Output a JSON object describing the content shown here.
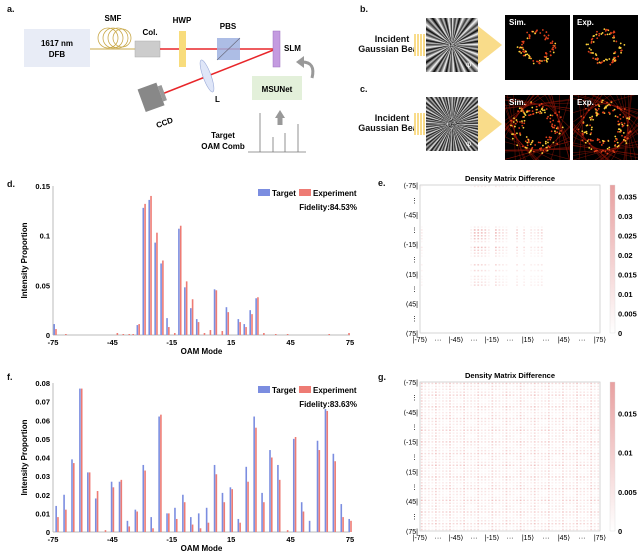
{
  "panel_labels": {
    "a": "a.",
    "b": "b.",
    "c": "c.",
    "d": "d.",
    "e": "e.",
    "f": "f.",
    "g": "g."
  },
  "setup": {
    "laser": [
      "1617 nm",
      "DFB"
    ],
    "smf": "SMF",
    "col": "Col.",
    "hwp": "HWP",
    "pbs": "PBS",
    "slm": "SLM",
    "lens": "L",
    "ccd": "CCD",
    "network": "MSUNet",
    "target": [
      "Target",
      "OAM Comb"
    ],
    "colors": {
      "laser_box": "#e8ecf6",
      "beam": "#e8262a",
      "hwp": "#f8dc7c",
      "pbs": "#9fb2e0",
      "slm": "#c49be0",
      "network_box": "#e3f0da",
      "arrow": "#999999"
    }
  },
  "beam_panels": [
    {
      "incident": [
        "Incident",
        "Gaussian Beam"
      ],
      "phase_symbol": "φ",
      "sim": "Sim.",
      "exp": "Exp."
    },
    {
      "incident": [
        "Incident",
        "Gaussian Beam"
      ],
      "phase_symbol": "φ",
      "sim": "Sim.",
      "exp": "Exp."
    }
  ],
  "chart_data": [
    {
      "type": "bar",
      "panel": "d",
      "xlabel": "OAM Mode",
      "ylabel": "Intensity Proportion",
      "xlim": [
        -75,
        75
      ],
      "ylim": [
        0,
        0.15
      ],
      "xticks": [
        "-75",
        "-45",
        "-15",
        "15",
        "45",
        "75"
      ],
      "yticks": [
        "0",
        "0.05",
        "0.1",
        "0.15"
      ],
      "legend": [
        "Target",
        "Experiment"
      ],
      "legend_position": "top-right",
      "annotation": "Fidelity:84.53%",
      "colors": {
        "Target": "#7b8de0",
        "Experiment": "#ee7b74"
      },
      "x": [
        -74,
        -69,
        -43,
        -40,
        -37,
        -35,
        -32,
        -29,
        -26,
        -23,
        -20,
        -17,
        -14,
        -11,
        -8,
        -5,
        -2,
        1,
        4,
        7,
        10,
        13,
        19,
        22,
        25,
        28,
        31,
        37,
        43,
        64,
        74
      ],
      "series": [
        {
          "name": "Target",
          "values": [
            0.011,
            0,
            0,
            0,
            0,
            0,
            0.01,
            0.128,
            0.136,
            0.093,
            0.072,
            0.017,
            0,
            0.107,
            0.048,
            0.027,
            0.016,
            0,
            0,
            0.046,
            0,
            0.028,
            0.016,
            0.011,
            0.025,
            0.037,
            0,
            0,
            0,
            0,
            0
          ]
        },
        {
          "name": "Experiment",
          "values": [
            0.006,
            0.001,
            0.002,
            0.001,
            0.001,
            0.001,
            0.011,
            0.132,
            0.14,
            0.103,
            0.075,
            0.008,
            0.002,
            0.11,
            0.054,
            0.036,
            0.013,
            0.002,
            0.005,
            0.045,
            0.004,
            0.023,
            0.013,
            0.008,
            0.021,
            0.038,
            0.002,
            0.001,
            0.001,
            0.001,
            0.002
          ]
        }
      ]
    },
    {
      "type": "heatmap",
      "panel": "e",
      "title": "Density Matrix Difference",
      "xticks": [
        "|-75⟩",
        "···",
        "|-45⟩",
        "···",
        "|-15⟩",
        "···",
        "|15⟩",
        "···",
        "|45⟩",
        "···",
        "|75⟩"
      ],
      "yticks": [
        "⟨-75|",
        "⋮",
        "⟨-45|",
        "⋮",
        "⟨-15|",
        "⋮",
        "⟨15|",
        "⋮",
        "⟨45|",
        "⋮",
        "⟨75|"
      ],
      "colorbar": {
        "range": [
          0,
          0.038
        ],
        "ticks": [
          "0",
          "0.005",
          "0.01",
          "0.015",
          "0.02",
          "0.025",
          "0.03",
          "0.035"
        ],
        "colors": [
          "#ffffff",
          "#e8a0a0"
        ]
      }
    },
    {
      "type": "bar",
      "panel": "f",
      "xlabel": "OAM Mode",
      "ylabel": "Intensity Proportion",
      "xlim": [
        -75,
        75
      ],
      "ylim": [
        0,
        0.08
      ],
      "xticks": [
        "-75",
        "-45",
        "-15",
        "15",
        "45",
        "75"
      ],
      "yticks": [
        "0",
        "0.01",
        "0.02",
        "0.03",
        "0.04",
        "0.05",
        "0.06",
        "0.07",
        "0.08"
      ],
      "legend": [
        "Target",
        "Experiment"
      ],
      "legend_position": "top-right",
      "annotation": "Fidelity:83.63%",
      "colors": {
        "Target": "#7b8de0",
        "Experiment": "#ee7b74"
      },
      "x": [
        -73,
        -69,
        -65,
        -61,
        -57,
        -53,
        -49,
        -45,
        -41,
        -37,
        -33,
        -29,
        -25,
        -21,
        -17,
        -13,
        -9,
        -5,
        -1,
        3,
        7,
        11,
        15,
        19,
        23,
        27,
        31,
        35,
        39,
        43,
        47,
        51,
        55,
        59,
        63,
        67,
        71,
        75
      ],
      "series": [
        {
          "name": "Target",
          "values": [
            0.014,
            0.02,
            0.039,
            0.077,
            0.032,
            0.018,
            0,
            0.027,
            0.027,
            0.006,
            0.012,
            0.036,
            0.008,
            0.062,
            0.01,
            0.013,
            0.02,
            0.008,
            0.01,
            0.013,
            0.036,
            0.021,
            0.024,
            0.007,
            0.035,
            0.062,
            0.021,
            0.044,
            0.036,
            0,
            0.05,
            0.016,
            0.006,
            0.049,
            0.066,
            0.042,
            0.015,
            0.007
          ]
        },
        {
          "name": "Experiment",
          "values": [
            0.008,
            0.012,
            0.037,
            0.077,
            0.032,
            0.022,
            0.001,
            0.024,
            0.028,
            0.003,
            0.011,
            0.033,
            0.002,
            0.063,
            0.01,
            0.007,
            0.016,
            0.004,
            0.002,
            0.005,
            0.031,
            0.016,
            0.023,
            0.005,
            0.027,
            0.056,
            0.016,
            0.04,
            0.028,
            0.001,
            0.051,
            0.011,
            0,
            0.044,
            0.065,
            0.038,
            0.008,
            0.006
          ]
        }
      ]
    },
    {
      "type": "heatmap",
      "panel": "g",
      "title": "Density Matrix Difference",
      "xticks": [
        "|-75⟩",
        "···",
        "|-45⟩",
        "···",
        "|-15⟩",
        "···",
        "|15⟩",
        "···",
        "|45⟩",
        "···",
        "|75⟩"
      ],
      "yticks": [
        "⟨-75|",
        "⋮",
        "⟨-45|",
        "⋮",
        "⟨-15|",
        "⋮",
        "⟨15|",
        "⋮",
        "⟨45|",
        "⋮",
        "⟨75|"
      ],
      "colorbar": {
        "range": [
          0,
          0.019
        ],
        "ticks": [
          "0",
          "0.005",
          "0.01",
          "0.015"
        ],
        "colors": [
          "#ffffff",
          "#e8a0a0"
        ]
      }
    }
  ]
}
